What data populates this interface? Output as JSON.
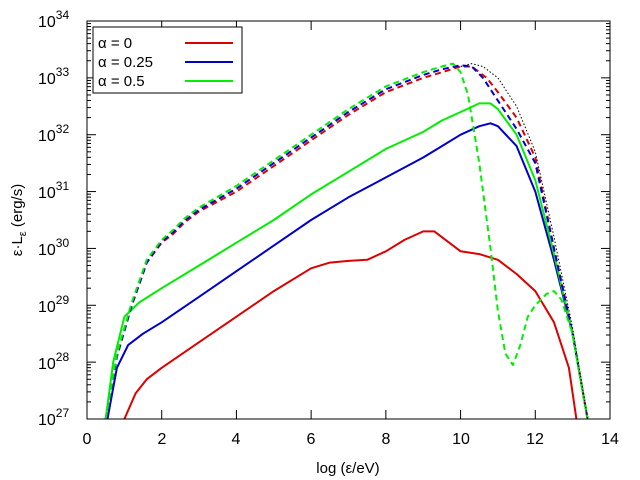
{
  "chart_data": {
    "type": "line",
    "title": "",
    "xlabel": "log (ε/eV)",
    "ylabel": "ε·Lε (erg/s)",
    "ylabel_main": "ε·L",
    "ylabel_sub": "ε",
    "ylabel_units": " (erg/s)",
    "xlim": [
      0,
      14
    ],
    "ylim_log10": [
      27,
      34
    ],
    "y_scale": "log",
    "x_ticks": [
      "0",
      "2",
      "4",
      "6",
      "8",
      "10",
      "12",
      "14"
    ],
    "y_ticks": [
      {
        "base": "10",
        "exp": "27"
      },
      {
        "base": "10",
        "exp": "28"
      },
      {
        "base": "10",
        "exp": "29"
      },
      {
        "base": "10",
        "exp": "30"
      },
      {
        "base": "10",
        "exp": "31"
      },
      {
        "base": "10",
        "exp": "32"
      },
      {
        "base": "10",
        "exp": "33"
      },
      {
        "base": "10",
        "exp": "34"
      }
    ],
    "grid": false,
    "legend_position": "top-left",
    "legend": [
      {
        "label": "α = 0",
        "color": "#dd0000"
      },
      {
        "label": "α = 0.25",
        "color": "#0000cc"
      },
      {
        "label": "α = 0.5",
        "color": "#00ee00"
      }
    ],
    "series": [
      {
        "name": "α = 0 (solid)",
        "color": "#dd0000",
        "style": "solid",
        "x": [
          1.0,
          1.3,
          1.6,
          2.0,
          3.0,
          4.0,
          5.0,
          6.0,
          6.5,
          7.0,
          7.5,
          8.0,
          8.5,
          9.0,
          9.3,
          9.6,
          10.0,
          10.5,
          11.0,
          11.5,
          12.0,
          12.5,
          12.9,
          13.1
        ],
        "log_y": [
          27.0,
          27.45,
          27.7,
          27.9,
          28.35,
          28.8,
          29.25,
          29.65,
          29.75,
          29.78,
          29.8,
          29.95,
          30.15,
          30.3,
          30.3,
          30.15,
          29.95,
          29.9,
          29.8,
          29.55,
          29.25,
          28.7,
          27.9,
          27.0
        ]
      },
      {
        "name": "α = 0.25 (solid)",
        "color": "#0000cc",
        "style": "solid",
        "x": [
          0.55,
          0.8,
          1.1,
          1.5,
          2.0,
          3.0,
          4.0,
          5.0,
          6.0,
          7.0,
          8.0,
          9.0,
          9.5,
          10.0,
          10.5,
          10.8,
          11.0,
          11.5,
          12.0,
          12.5,
          13.0,
          13.4
        ],
        "log_y": [
          27.0,
          27.9,
          28.3,
          28.5,
          28.7,
          29.15,
          29.6,
          30.05,
          30.5,
          30.9,
          31.25,
          31.6,
          31.8,
          32.0,
          32.15,
          32.2,
          32.15,
          31.8,
          31.0,
          29.8,
          28.5,
          27.0
        ]
      },
      {
        "name": "α = 0.5 (solid)",
        "color": "#00ee00",
        "style": "solid",
        "x": [
          0.5,
          0.7,
          1.0,
          1.4,
          2.0,
          3.0,
          4.0,
          5.0,
          6.0,
          7.0,
          8.0,
          9.0,
          9.5,
          10.0,
          10.5,
          10.8,
          11.0,
          11.5,
          12.0,
          12.5,
          13.0,
          13.4
        ],
        "log_y": [
          27.0,
          28.0,
          28.8,
          29.05,
          29.3,
          29.7,
          30.1,
          30.5,
          30.95,
          31.35,
          31.75,
          32.05,
          32.25,
          32.4,
          32.55,
          32.55,
          32.45,
          32.0,
          31.2,
          29.9,
          28.5,
          27.0
        ]
      },
      {
        "name": "α = 0 (dashed)",
        "color": "#dd0000",
        "style": "dashed",
        "x": [
          0.5,
          0.8,
          1.2,
          1.6,
          2.0,
          2.3,
          2.6,
          3.0,
          4.0,
          5.0,
          6.0,
          7.0,
          8.0,
          9.0,
          9.5,
          10.0,
          10.3,
          10.7,
          11.0,
          11.5,
          12.0,
          12.5,
          13.0,
          13.4
        ],
        "log_y": [
          27.0,
          28.1,
          29.0,
          29.75,
          30.1,
          30.25,
          30.45,
          30.65,
          31.0,
          31.45,
          31.9,
          32.35,
          32.75,
          33.0,
          33.1,
          33.2,
          33.2,
          33.0,
          32.75,
          32.3,
          31.6,
          30.0,
          28.5,
          27.0
        ]
      },
      {
        "name": "α = 0.25 (dashed)",
        "color": "#0000cc",
        "style": "dashed",
        "x": [
          0.5,
          0.8,
          1.2,
          1.6,
          2.0,
          2.3,
          2.6,
          3.0,
          4.0,
          5.0,
          6.0,
          7.0,
          8.0,
          9.0,
          9.5,
          10.0,
          10.3,
          10.6,
          11.0,
          11.5,
          12.0,
          12.5,
          13.0,
          13.4
        ],
        "log_y": [
          27.0,
          28.1,
          29.0,
          29.75,
          30.12,
          30.28,
          30.48,
          30.68,
          31.05,
          31.5,
          31.95,
          32.4,
          32.8,
          33.05,
          33.15,
          33.22,
          33.2,
          33.0,
          32.6,
          32.1,
          31.5,
          30.0,
          28.5,
          27.0
        ]
      },
      {
        "name": "α = 0.5 (dashed)",
        "color": "#00ee00",
        "style": "dashed",
        "x": [
          0.5,
          0.8,
          1.2,
          1.6,
          2.0,
          2.3,
          2.6,
          3.0,
          4.0,
          5.0,
          6.0,
          7.0,
          8.0,
          9.0,
          9.5,
          9.8,
          10.0,
          10.2,
          10.5,
          10.8,
          11.0,
          11.2,
          11.4,
          11.6,
          11.8,
          12.0,
          12.3,
          12.5,
          12.7,
          13.0,
          13.4
        ],
        "log_y": [
          27.0,
          28.15,
          29.05,
          29.8,
          30.15,
          30.32,
          30.52,
          30.72,
          31.1,
          31.55,
          32.0,
          32.45,
          32.85,
          33.1,
          33.2,
          33.25,
          33.1,
          32.7,
          31.5,
          30.0,
          28.9,
          28.15,
          27.95,
          28.3,
          28.8,
          29.0,
          29.2,
          29.25,
          29.1,
          28.5,
          27.0
        ]
      },
      {
        "name": "dotted envelope",
        "color": "#000000",
        "style": "dotted",
        "x": [
          10.0,
          10.3,
          10.6,
          11.0,
          11.5,
          12.0,
          12.5,
          13.0,
          13.4
        ],
        "log_y": [
          33.2,
          33.25,
          33.2,
          33.0,
          32.5,
          31.7,
          30.2,
          28.6,
          27.0
        ]
      }
    ]
  }
}
